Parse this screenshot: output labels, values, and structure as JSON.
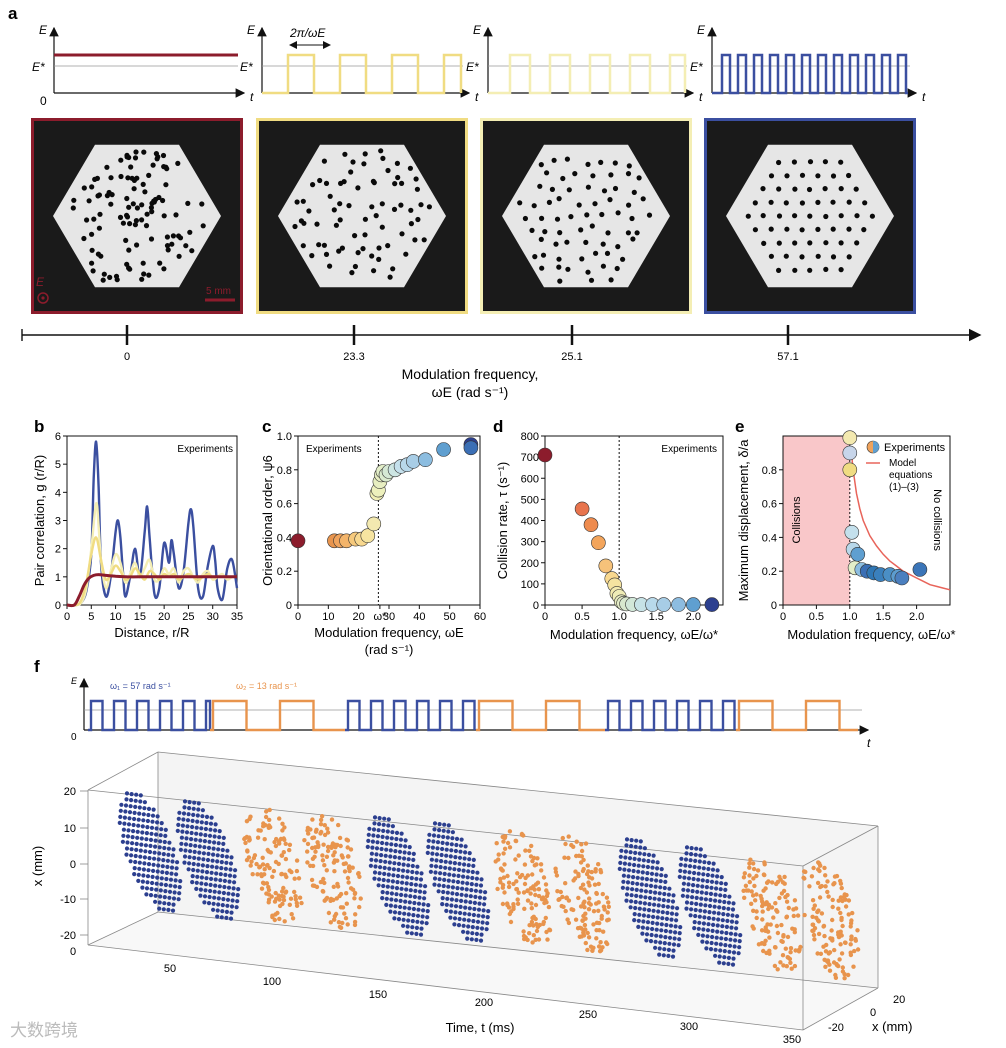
{
  "panel_labels": {
    "a": "a",
    "b": "b",
    "c": "c",
    "d": "d",
    "e": "e",
    "f": "f"
  },
  "colors": {
    "red": "#8c1c2c",
    "yellow": "#f0dc82",
    "paleyellow": "#f4eeb4",
    "blue": "#3b4fa0",
    "orange": "#e8944d",
    "dark_blue": "#2c3f8f"
  },
  "panel_a": {
    "axis_E": "E",
    "axis_t": "t",
    "axis_zero": "0",
    "estar": "E*",
    "period_label": "2π/ωE",
    "scale_bar": "5 mm",
    "field_symbol": "E",
    "timeline": {
      "ticks": [
        "0",
        "23.3",
        "25.1",
        "57.1"
      ],
      "label_line1": "Modulation frequency,",
      "label_line2": "ωE (rad s⁻¹)"
    }
  },
  "chart_data": [
    {
      "panel": "b",
      "type": "line",
      "title": "",
      "annotation": "Experiments",
      "xlabel": "Distance, r/R",
      "ylabel": "Pair correlation, g (r/R)",
      "xlim": [
        0,
        35
      ],
      "ylim": [
        0,
        6
      ],
      "xticks": [
        "0",
        "5",
        "10",
        "15",
        "20",
        "25",
        "30",
        "35"
      ],
      "yticks": [
        "0",
        "1",
        "2",
        "3",
        "4",
        "5",
        "6"
      ],
      "series": [
        {
          "name": "57.1",
          "color": "#3b4fa0",
          "x": [
            0,
            2,
            3,
            4,
            5,
            5.5,
            6,
            6.5,
            7,
            8,
            9,
            10,
            10.5,
            11,
            11.5,
            12,
            13,
            14,
            15,
            16,
            16.5,
            17,
            18,
            19,
            20,
            21,
            21.5,
            22,
            23,
            24,
            25,
            25.5,
            26,
            27,
            28,
            29,
            30,
            30.5,
            31,
            32,
            33,
            34,
            35
          ],
          "y": [
            0,
            0,
            0.1,
            0.5,
            1.8,
            4.5,
            5.8,
            4.2,
            1.5,
            0.3,
            1.0,
            2.6,
            3.0,
            2.4,
            1.2,
            0.3,
            1.0,
            2.0,
            1.0,
            2.6,
            3.5,
            2.4,
            0.4,
            0.6,
            2.2,
            1.5,
            2.3,
            1.8,
            0.6,
            1.2,
            2.9,
            3.4,
            2.8,
            0.6,
            0.3,
            1.4,
            2.1,
            1.6,
            0.6,
            0.2,
            1.3,
            1.6,
            0.6
          ]
        },
        {
          "name": "25.1",
          "color": "#f4eeb4",
          "x": [
            0,
            2,
            3,
            4,
            5,
            6,
            6.5,
            7,
            8,
            9,
            10,
            11,
            12,
            13,
            14,
            15,
            16,
            17,
            18,
            19,
            20,
            21,
            22,
            23,
            24,
            25,
            26,
            27,
            28,
            29,
            30,
            31,
            32,
            33,
            34,
            35
          ],
          "y": [
            0,
            0,
            0.1,
            0.6,
            2.0,
            3.6,
            2.8,
            1.6,
            0.6,
            1.2,
            1.8,
            1.5,
            0.8,
            1.1,
            1.5,
            1.0,
            1.3,
            1.6,
            0.9,
            0.9,
            1.3,
            1.1,
            1.3,
            0.8,
            1.2,
            1.3,
            1.0,
            0.8,
            1.1,
            1.2,
            0.9,
            1.0,
            1.1,
            0.9,
            1.0,
            1.0
          ]
        },
        {
          "name": "23.3",
          "color": "#f0dc82",
          "x": [
            0,
            2,
            3,
            4,
            5,
            6,
            7,
            8,
            9,
            10,
            11,
            12,
            13,
            14,
            15,
            16,
            17,
            18,
            19,
            20,
            21,
            22,
            23,
            24,
            25,
            26,
            27,
            28,
            29,
            30,
            31,
            32,
            33,
            34,
            35
          ],
          "y": [
            0,
            0,
            0.2,
            0.8,
            1.8,
            2.4,
            1.6,
            0.9,
            1.1,
            1.4,
            1.2,
            0.9,
            1.0,
            1.3,
            1.1,
            0.9,
            1.2,
            1.1,
            0.9,
            1.1,
            1.0,
            1.1,
            0.9,
            1.0,
            1.1,
            1.0,
            0.9,
            1.0,
            1.1,
            1.0,
            1.0,
            1.0,
            1.0,
            1.0,
            1.0
          ]
        },
        {
          "name": "0",
          "color": "#8c1c2c",
          "x": [
            0,
            1.5,
            2.5,
            3.5,
            4.5,
            5.5,
            6.5,
            8,
            10,
            12,
            15,
            20,
            25,
            30,
            35
          ],
          "y": [
            0,
            0,
            0.3,
            0.7,
            0.95,
            1.05,
            1.08,
            1.05,
            1.02,
            1.0,
            1.0,
            1.0,
            1.0,
            1.0,
            1.0
          ]
        }
      ]
    },
    {
      "panel": "c",
      "type": "scatter",
      "title": "",
      "annotation": "Experiments",
      "xlabel": "Modulation frequency, ωE",
      "xlabel2": "(rad s⁻¹)",
      "ylabel": "Orientational order, ψ6",
      "xlim": [
        0,
        60
      ],
      "ylim": [
        0,
        1.0
      ],
      "xticks": [
        "0",
        "10",
        "20",
        "ω*",
        "30",
        "40",
        "50",
        "60"
      ],
      "yticks": [
        "0",
        "0.2",
        "0.4",
        "0.6",
        "0.8",
        "1.0"
      ],
      "vline": 26.5,
      "x": [
        0,
        12,
        14,
        16,
        19,
        21,
        23,
        25,
        26,
        26.5,
        27,
        27.5,
        28,
        29,
        30,
        32,
        34,
        36,
        38,
        42,
        48,
        57,
        57
      ],
      "y": [
        0.38,
        0.38,
        0.38,
        0.38,
        0.39,
        0.39,
        0.41,
        0.48,
        0.66,
        0.68,
        0.73,
        0.77,
        0.79,
        0.77,
        0.79,
        0.8,
        0.82,
        0.83,
        0.85,
        0.86,
        0.92,
        0.95,
        0.93
      ],
      "colors": [
        "#8c1c2c",
        "#e8944d",
        "#f0a35c",
        "#f3b46a",
        "#f6c97c",
        "#f8d88f",
        "#f6e4a0",
        "#f3e9b0",
        "#f0eeb4",
        "#edf0bc",
        "#e7eec0",
        "#e6edc2",
        "#e3eec8",
        "#daeacd",
        "#d5e8d4",
        "#cde6e3",
        "#c4e0ec",
        "#b8d8ea",
        "#a8cde6",
        "#8cbde0",
        "#5f9fd0",
        "#2c3f8f",
        "#3b6fb5"
      ]
    },
    {
      "panel": "d",
      "type": "scatter",
      "title": "",
      "annotation": "Experiments",
      "xlabel": "Modulation frequency, ωE/ω*",
      "ylabel": "Collision rate, τ (s⁻¹)",
      "xlim": [
        0,
        2.4
      ],
      "ylim": [
        0,
        800
      ],
      "xticks": [
        "0",
        "0.5",
        "1.0",
        "1.5",
        "2.0"
      ],
      "yticks": [
        "0",
        "100",
        "200",
        "300",
        "400",
        "500",
        "600",
        "700",
        "800"
      ],
      "vline": 1.0,
      "x": [
        0,
        0.5,
        0.62,
        0.72,
        0.82,
        0.9,
        0.94,
        0.97,
        1.0,
        1.03,
        1.06,
        1.1,
        1.18,
        1.3,
        1.45,
        1.6,
        1.8,
        2.0,
        2.25
      ],
      "y": [
        710,
        455,
        380,
        295,
        185,
        125,
        95,
        55,
        40,
        15,
        8,
        5,
        3,
        2,
        2,
        2,
        2,
        2,
        2
      ],
      "colors": [
        "#8c1c2c",
        "#e8744d",
        "#ee8b4e",
        "#f3a55c",
        "#f6c27a",
        "#f8d88f",
        "#f5e3a0",
        "#f2e9ae",
        "#efecb6",
        "#e7ebbf",
        "#e1eac6",
        "#d8e8ce",
        "#d1e7d8",
        "#c6e2e6",
        "#b8d9ea",
        "#a7cde6",
        "#8dbce0",
        "#5f9fd0",
        "#2c3f8f"
      ]
    },
    {
      "panel": "e",
      "type": "scatter",
      "title": "",
      "legend": [
        "Experiments",
        "Model equations (1)–(3)"
      ],
      "region_left": "Collisions",
      "region_right": "No collisions",
      "xlabel": "Modulation frequency, ωE/ω*",
      "ylabel": "Maximum displacement, δ/a",
      "xlim": [
        0,
        2.5
      ],
      "ylim": [
        0,
        1.0
      ],
      "xticks": [
        "0",
        "0.5",
        "1.0",
        "1.5",
        "2.0"
      ],
      "yticks": [
        "0",
        "0.2",
        "0.4",
        "0.6",
        "0.8"
      ],
      "vline": 1.0,
      "x": [
        1.0,
        1.0,
        1.0,
        1.03,
        1.05,
        1.08,
        1.12,
        1.18,
        1.26,
        1.36,
        1.46,
        1.6,
        1.72,
        1.78,
        2.05
      ],
      "y": [
        0.99,
        0.9,
        0.8,
        0.43,
        0.33,
        0.22,
        0.3,
        0.21,
        0.2,
        0.19,
        0.18,
        0.18,
        0.17,
        0.16,
        0.21
      ],
      "colors": [
        "#f3e9b0",
        "#c7d5ea",
        "#f0dc82",
        "#c4e0ec",
        "#b8d8ea",
        "#e3eec8",
        "#5f9fd0",
        "#8cbde0",
        "#3b6fb5",
        "#2f77b5",
        "#3a80bd",
        "#4a8fc6",
        "#5c9ccf",
        "#4b7fbf",
        "#3b75b8"
      ],
      "model_x": [
        1.02,
        1.05,
        1.1,
        1.15,
        1.2,
        1.3,
        1.4,
        1.5,
        1.6,
        1.7,
        1.8,
        1.9,
        2.0,
        2.1,
        2.2,
        2.3,
        2.4,
        2.5
      ],
      "model_y": [
        0.92,
        0.8,
        0.66,
        0.57,
        0.5,
        0.41,
        0.35,
        0.3,
        0.26,
        0.23,
        0.2,
        0.18,
        0.16,
        0.14,
        0.12,
        0.11,
        0.1,
        0.09
      ]
    }
  ],
  "panel_f": {
    "omega1_label": "ω₁ = 57 rad s⁻¹",
    "omega2_label": "ω₂ = 13 rad s⁻¹",
    "axis_E": "E",
    "axis_t": "t",
    "axis_zero": "0",
    "x_label": "x (mm)",
    "y_label": "x (mm)",
    "time_label": "Time, t (ms)",
    "time_ticks": [
      "50",
      "100",
      "150",
      "200",
      "250",
      "300",
      "350"
    ],
    "x_ticks": [
      "20",
      "10",
      "0",
      "-10",
      "-20"
    ],
    "depth_ticks": [
      "20",
      "0",
      "-20"
    ],
    "origin_zero": "0",
    "sequence": [
      "blue",
      "blue",
      "orange",
      "orange",
      "blue",
      "blue",
      "orange",
      "orange",
      "blue",
      "blue",
      "orange",
      "orange"
    ]
  },
  "watermark": "大数跨境"
}
